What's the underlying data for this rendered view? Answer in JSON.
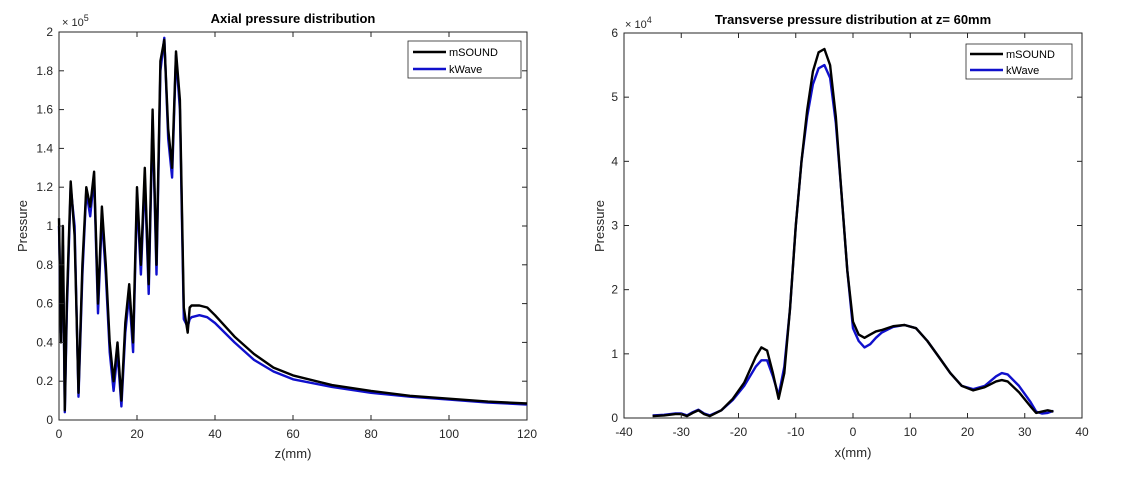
{
  "colors": {
    "mSOUND": "#000000",
    "kWave": "#1010cc",
    "axes": "#262626"
  },
  "chart_data": [
    {
      "type": "line",
      "title": "Axial pressure distribution",
      "xlabel": "z(mm)",
      "ylabel": "Pressure",
      "exponent_label": "×10^5",
      "exponent_base": "× 10",
      "exponent_power": "5",
      "xlim": [
        0,
        120
      ],
      "ylim": [
        0,
        200000
      ],
      "xticks": [
        0,
        20,
        40,
        60,
        80,
        100,
        120
      ],
      "yticks": [
        0,
        20000,
        40000,
        60000,
        80000,
        100000,
        120000,
        140000,
        160000,
        180000,
        200000
      ],
      "yticklabels": [
        "0",
        "0.2",
        "0.4",
        "0.6",
        "0.8",
        "1",
        "1.2",
        "1.4",
        "1.6",
        "1.8",
        "2"
      ],
      "legend": {
        "position": "top-right",
        "entries": [
          "mSOUND",
          "kWave"
        ]
      },
      "series": [
        {
          "name": "mSOUND",
          "x": [
            0,
            0.5,
            1,
            1.5,
            2,
            3,
            4,
            5,
            6,
            7,
            8,
            9,
            10,
            11,
            12,
            13,
            14,
            15,
            16,
            17,
            18,
            19,
            20,
            21,
            22,
            23,
            24,
            25,
            26,
            27,
            28,
            29,
            30,
            31,
            32,
            33,
            33.5,
            34,
            36,
            38,
            40,
            45,
            50,
            55,
            60,
            70,
            80,
            90,
            100,
            110,
            120
          ],
          "y": [
            104000,
            40000,
            100000,
            5000,
            60000,
            123000,
            95000,
            14000,
            80000,
            120000,
            110000,
            128000,
            60000,
            110000,
            80000,
            40000,
            20000,
            40000,
            10000,
            50000,
            70000,
            40000,
            120000,
            80000,
            130000,
            70000,
            160000,
            80000,
            185000,
            196000,
            150000,
            130000,
            190000,
            165000,
            58000,
            45000,
            58000,
            59000,
            59000,
            58000,
            54000,
            43000,
            34000,
            27000,
            23000,
            18000,
            15000,
            12500,
            11000,
            9500,
            8500
          ]
        },
        {
          "name": "kWave",
          "x": [
            0,
            0.5,
            1,
            1.5,
            2,
            3,
            4,
            5,
            6,
            7,
            8,
            9,
            10,
            11,
            12,
            13,
            14,
            15,
            16,
            17,
            18,
            19,
            20,
            21,
            22,
            23,
            24,
            25,
            26,
            27,
            28,
            29,
            30,
            31,
            32,
            33,
            33.5,
            34,
            36,
            38,
            40,
            45,
            50,
            55,
            60,
            70,
            80,
            90,
            100,
            110,
            120
          ],
          "y": [
            100000,
            45000,
            90000,
            4000,
            55000,
            120000,
            100000,
            12000,
            75000,
            118000,
            105000,
            125000,
            55000,
            105000,
            75000,
            35000,
            15000,
            35000,
            7000,
            45000,
            65000,
            35000,
            115000,
            75000,
            125000,
            65000,
            155000,
            75000,
            180000,
            197000,
            145000,
            125000,
            188000,
            160000,
            52000,
            48000,
            52000,
            53000,
            54000,
            53000,
            50000,
            40000,
            31000,
            25000,
            21000,
            17000,
            14000,
            12000,
            10500,
            9000,
            8000
          ]
        }
      ]
    },
    {
      "type": "line",
      "title": "Transverse pressure distribution at z= 60mm",
      "xlabel": "x(mm)",
      "ylabel": "Pressure",
      "exponent_label": "×10^4",
      "exponent_base": "× 10",
      "exponent_power": "4",
      "xlim": [
        -40,
        40
      ],
      "ylim": [
        0,
        60000
      ],
      "xticks": [
        -40,
        -30,
        -20,
        -10,
        0,
        10,
        20,
        30,
        40
      ],
      "yticks": [
        0,
        10000,
        20000,
        30000,
        40000,
        50000,
        60000
      ],
      "yticklabels": [
        "0",
        "1",
        "2",
        "3",
        "4",
        "5",
        "6"
      ],
      "legend": {
        "position": "top-right",
        "entries": [
          "mSOUND",
          "kWave"
        ]
      },
      "series": [
        {
          "name": "mSOUND",
          "x": [
            -35,
            -33,
            -31,
            -30,
            -29,
            -28,
            -27,
            -26,
            -25,
            -23,
            -21,
            -19,
            -17,
            -16,
            -15,
            -14,
            -13,
            -12,
            -11,
            -10,
            -9,
            -8,
            -7,
            -6,
            -5,
            -4,
            -3,
            -2,
            -1,
            0,
            1,
            2,
            3,
            4,
            5,
            7,
            9,
            11,
            13,
            15,
            17,
            19,
            21,
            23,
            25,
            26,
            27,
            29,
            31,
            32,
            33,
            34,
            35
          ],
          "y": [
            300,
            400,
            600,
            600,
            300,
            800,
            1200,
            600,
            300,
            1200,
            3000,
            5500,
            9500,
            11000,
            10500,
            7000,
            3000,
            7000,
            17000,
            30000,
            40000,
            48000,
            54000,
            57000,
            57500,
            55000,
            47000,
            35000,
            23000,
            15000,
            13000,
            12500,
            13000,
            13500,
            13700,
            14300,
            14500,
            14000,
            12000,
            9500,
            7000,
            5000,
            4300,
            4800,
            5700,
            5900,
            5700,
            4000,
            1800,
            800,
            1000,
            1200,
            1000
          ]
        },
        {
          "name": "kWave",
          "x": [
            -35,
            -33,
            -31,
            -30,
            -29,
            -28,
            -27,
            -26,
            -25,
            -23,
            -21,
            -19,
            -17,
            -16,
            -15,
            -14,
            -13,
            -12,
            -11,
            -10,
            -9,
            -8,
            -7,
            -6,
            -5,
            -4,
            -3,
            -2,
            -1,
            0,
            1,
            2,
            3,
            4,
            5,
            7,
            9,
            11,
            13,
            15,
            17,
            19,
            21,
            23,
            25,
            26,
            27,
            29,
            31,
            32,
            33,
            34,
            35
          ],
          "y": [
            400,
            500,
            700,
            700,
            400,
            900,
            1300,
            700,
            400,
            1200,
            2800,
            5000,
            8000,
            9000,
            9000,
            6500,
            3500,
            8000,
            17000,
            30000,
            40000,
            47000,
            52000,
            54500,
            55000,
            53000,
            46000,
            35000,
            23000,
            14000,
            12000,
            11000,
            11500,
            12500,
            13300,
            14200,
            14500,
            14000,
            12000,
            9500,
            7000,
            5000,
            4500,
            5000,
            6500,
            7000,
            6800,
            5000,
            2500,
            1000,
            700,
            800,
            1100
          ]
        }
      ]
    }
  ]
}
